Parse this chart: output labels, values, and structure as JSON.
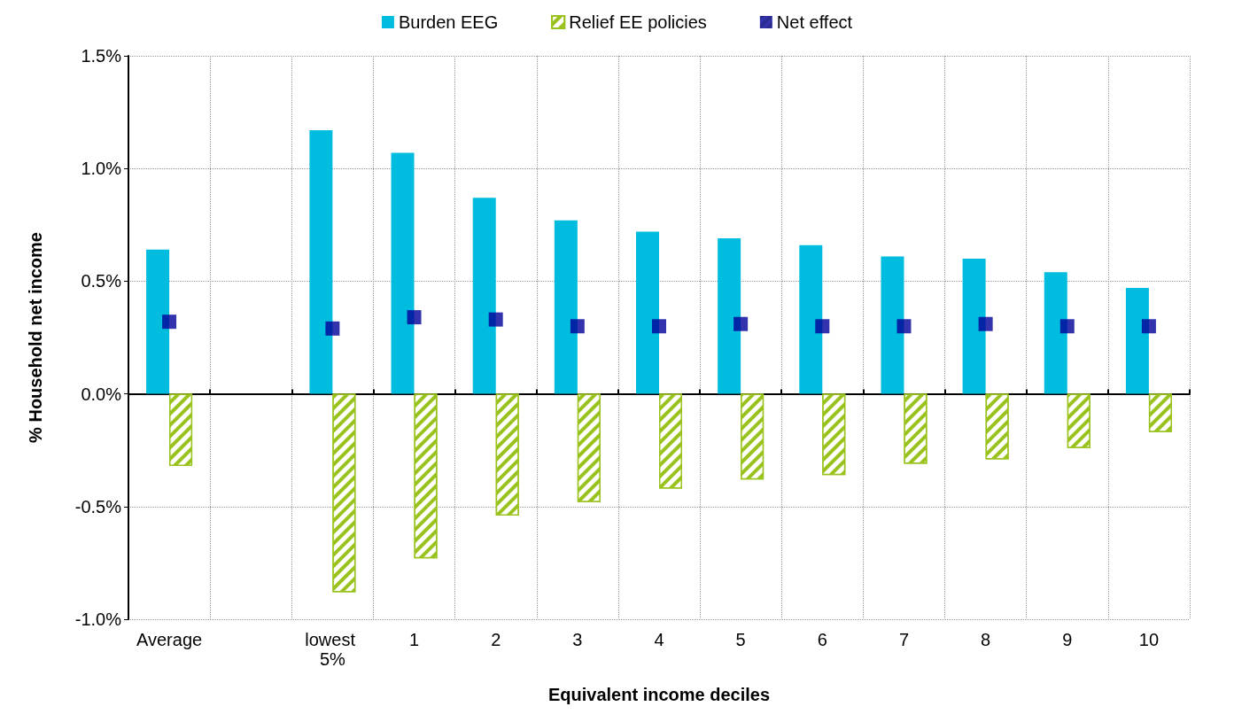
{
  "chart_data": {
    "type": "bar",
    "xlabel": "Equivalent income deciles",
    "ylabel": "% Household net income",
    "categories": [
      "Average",
      null,
      "lowest 5%",
      "1",
      "2",
      "3",
      "4",
      "5",
      "6",
      "7",
      "8",
      "9",
      "10"
    ],
    "series": [
      {
        "name": "Burden EEG",
        "color": "#00bde0",
        "values": [
          0.64,
          null,
          1.17,
          1.07,
          0.87,
          0.77,
          0.72,
          0.69,
          0.66,
          0.61,
          0.6,
          0.54,
          0.47
        ]
      },
      {
        "name": "Relief EE policies",
        "color": "#99c21c",
        "values": [
          -0.32,
          null,
          -0.88,
          -0.73,
          -0.54,
          -0.48,
          -0.42,
          -0.38,
          -0.36,
          -0.31,
          -0.29,
          -0.24,
          -0.17
        ]
      },
      {
        "name": "Net effect",
        "type": "scatter",
        "marker": "square",
        "color": "#000099",
        "values": [
          0.32,
          null,
          0.29,
          0.34,
          0.33,
          0.3,
          0.3,
          0.31,
          0.3,
          0.3,
          0.31,
          0.3,
          0.3
        ]
      }
    ],
    "ylim": [
      -1.0,
      1.5
    ],
    "yticks": [
      {
        "value": -1.0,
        "label": "-1.0%"
      },
      {
        "value": -0.5,
        "label": "-0.5%"
      },
      {
        "value": 0,
        "label": "0.0%"
      },
      {
        "value": 0.5,
        "label": "0.5%"
      },
      {
        "value": 1.0,
        "label": "1.0%"
      },
      {
        "value": 1.5,
        "label": "1.5%"
      }
    ],
    "grid": true,
    "legend": "top"
  }
}
